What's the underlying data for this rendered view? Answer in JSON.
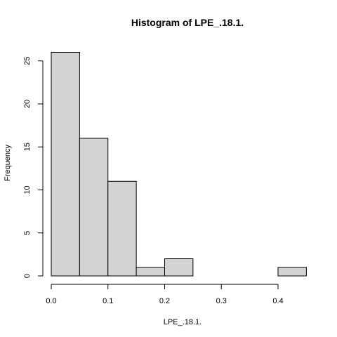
{
  "chart_data": {
    "type": "bar",
    "title": "Histogram of LPE_.18.1.",
    "xlabel": "LPE_.18.1.",
    "ylabel": "Frequency",
    "bins": [
      {
        "start": 0.0,
        "end": 0.05,
        "count": 26
      },
      {
        "start": 0.05,
        "end": 0.1,
        "count": 16
      },
      {
        "start": 0.1,
        "end": 0.15,
        "count": 11
      },
      {
        "start": 0.15,
        "end": 0.2,
        "count": 1
      },
      {
        "start": 0.2,
        "end": 0.25,
        "count": 2
      },
      {
        "start": 0.25,
        "end": 0.3,
        "count": 0
      },
      {
        "start": 0.3,
        "end": 0.35,
        "count": 0
      },
      {
        "start": 0.35,
        "end": 0.4,
        "count": 0
      },
      {
        "start": 0.4,
        "end": 0.45,
        "count": 1
      }
    ],
    "x_ticks": [
      "0.0",
      "0.1",
      "0.2",
      "0.3",
      "0.4"
    ],
    "y_ticks": [
      "0",
      "5",
      "10",
      "15",
      "20",
      "25"
    ],
    "xlim": [
      0,
      0.45
    ],
    "ylim": [
      0,
      26
    ],
    "bar_color": "#d3d3d3",
    "grid": false,
    "legend": "none"
  }
}
